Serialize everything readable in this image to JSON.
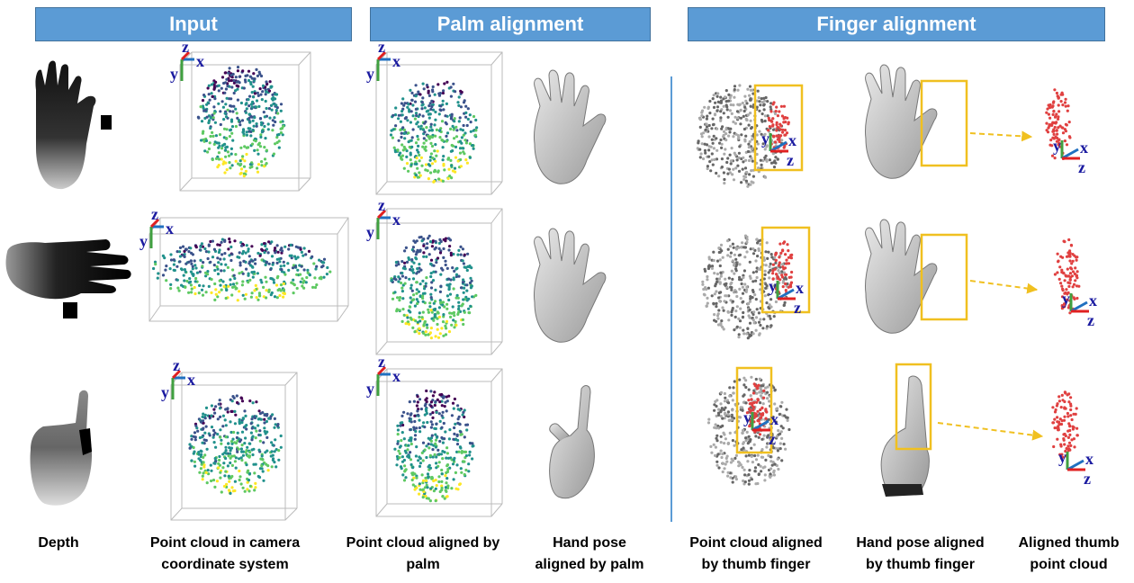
{
  "headers": {
    "input": "Input",
    "palm": "Palm alignment",
    "finger": "Finger alignment"
  },
  "captions": {
    "depth": "Depth",
    "camera": "Point cloud in camera\ncoordinate system",
    "palm_cloud": "Point cloud aligned by\npalm",
    "palm_pose": "Hand pose\naligned by palm",
    "thumb_cloud": "Point cloud aligned\nby thumb finger",
    "thumb_pose": "Hand pose aligned\nby thumb finger",
    "thumb_points": "Aligned thumb\npoint cloud"
  },
  "axes": {
    "x": "x",
    "y": "y",
    "z": "z"
  },
  "colors": {
    "header_fill": "#5b9bd5",
    "divider": "#5b9bd5",
    "highlight_box": "#f0c020",
    "axis_x": "#e02020",
    "axis_y": "#40a040",
    "axis_z": "#2070c0",
    "axis_label": "#1a1aa0",
    "thumb_points": "#e04040"
  }
}
